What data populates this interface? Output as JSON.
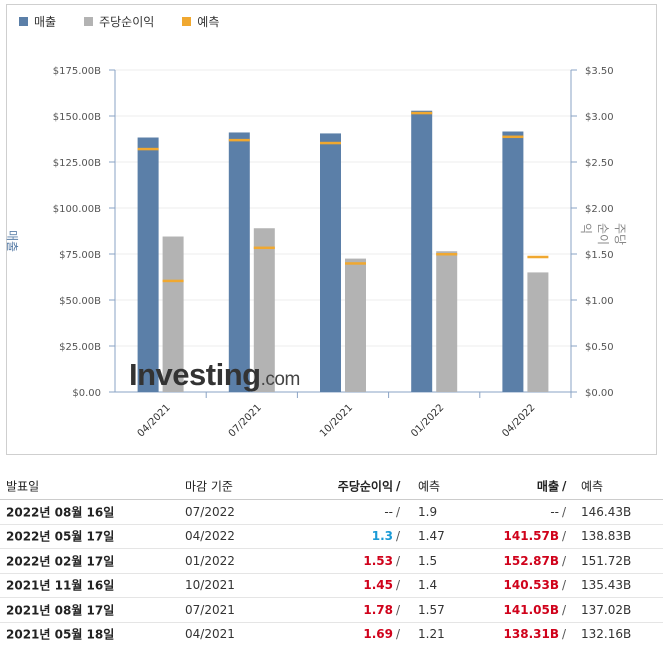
{
  "legend": [
    {
      "label": "매출",
      "color": "#5b7fa8"
    },
    {
      "label": "주당순이익",
      "color": "#b3b3b3"
    },
    {
      "label": "예측",
      "color": "#f0a830"
    }
  ],
  "axis": {
    "left_title": "매출",
    "right_title": "주당순이익"
  },
  "watermark": {
    "brand": "Investing",
    "suffix": ".com"
  },
  "chart_data": {
    "type": "bar",
    "categories": [
      "04/2021",
      "07/2021",
      "10/2021",
      "01/2022",
      "04/2022"
    ],
    "series": [
      {
        "name": "매출",
        "axis": "left",
        "values": [
          138.31,
          141.05,
          140.53,
          152.87,
          141.57
        ],
        "color": "#5b7fa8"
      },
      {
        "name": "주당순이익",
        "axis": "right",
        "values": [
          1.69,
          1.78,
          1.45,
          1.53,
          1.3
        ],
        "color": "#b3b3b3"
      }
    ],
    "forecasts": {
      "매출": [
        132.16,
        137.02,
        135.43,
        151.72,
        138.83
      ],
      "주당순이익": [
        1.21,
        1.57,
        1.4,
        1.5,
        1.47
      ],
      "color": "#f0a830"
    },
    "left_axis": {
      "min": 0,
      "max": 175,
      "ticks": [
        "$0.00",
        "$25.00B",
        "$50.00B",
        "$75.00B",
        "$100.00B",
        "$125.00B",
        "$150.00B",
        "$175.00B"
      ]
    },
    "right_axis": {
      "min": 0,
      "max": 3.5,
      "ticks": [
        "$0.00",
        "$0.50",
        "$1.00",
        "$1.50",
        "$2.00",
        "$2.50",
        "$3.00",
        "$3.50"
      ]
    },
    "ylabel_left": "매출",
    "ylabel_right": "주당순이익",
    "grid": true,
    "legend_position": "top-left"
  },
  "table": {
    "headers": {
      "date": "발표일",
      "period": "마감 기준",
      "eps": "주당순이익",
      "eps_slash": "/",
      "eps_forecast": "예측",
      "rev": "매출",
      "rev_slash": "/",
      "rev_forecast": "예측"
    },
    "rows": [
      {
        "date": "2022년 08월 16일",
        "period": "07/2022",
        "eps": "--",
        "eps_color": "plain",
        "eps_slash": "/",
        "eps_forecast": "1.9",
        "rev": "--",
        "rev_color": "plain",
        "rev_slash": "/",
        "rev_forecast": "146.43B"
      },
      {
        "date": "2022년 05월 17일",
        "period": "04/2022",
        "eps": "1.3",
        "eps_color": "blue",
        "eps_slash": "/",
        "eps_forecast": "1.47",
        "rev": "141.57B",
        "rev_color": "red",
        "rev_slash": "/",
        "rev_forecast": "138.83B"
      },
      {
        "date": "2022년 02월 17일",
        "period": "01/2022",
        "eps": "1.53",
        "eps_color": "red",
        "eps_slash": "/",
        "eps_forecast": "1.5",
        "rev": "152.87B",
        "rev_color": "red",
        "rev_slash": "/",
        "rev_forecast": "151.72B"
      },
      {
        "date": "2021년 11월 16일",
        "period": "10/2021",
        "eps": "1.45",
        "eps_color": "red",
        "eps_slash": "/",
        "eps_forecast": "1.4",
        "rev": "140.53B",
        "rev_color": "red",
        "rev_slash": "/",
        "rev_forecast": "135.43B"
      },
      {
        "date": "2021년 08월 17일",
        "period": "07/2021",
        "eps": "1.78",
        "eps_color": "red",
        "eps_slash": "/",
        "eps_forecast": "1.57",
        "rev": "141.05B",
        "rev_color": "red",
        "rev_slash": "/",
        "rev_forecast": "137.02B"
      },
      {
        "date": "2021년 05월 18일",
        "period": "04/2021",
        "eps": "1.69",
        "eps_color": "red",
        "eps_slash": "/",
        "eps_forecast": "1.21",
        "rev": "138.31B",
        "rev_color": "red",
        "rev_slash": "/",
        "rev_forecast": "132.16B"
      }
    ]
  }
}
